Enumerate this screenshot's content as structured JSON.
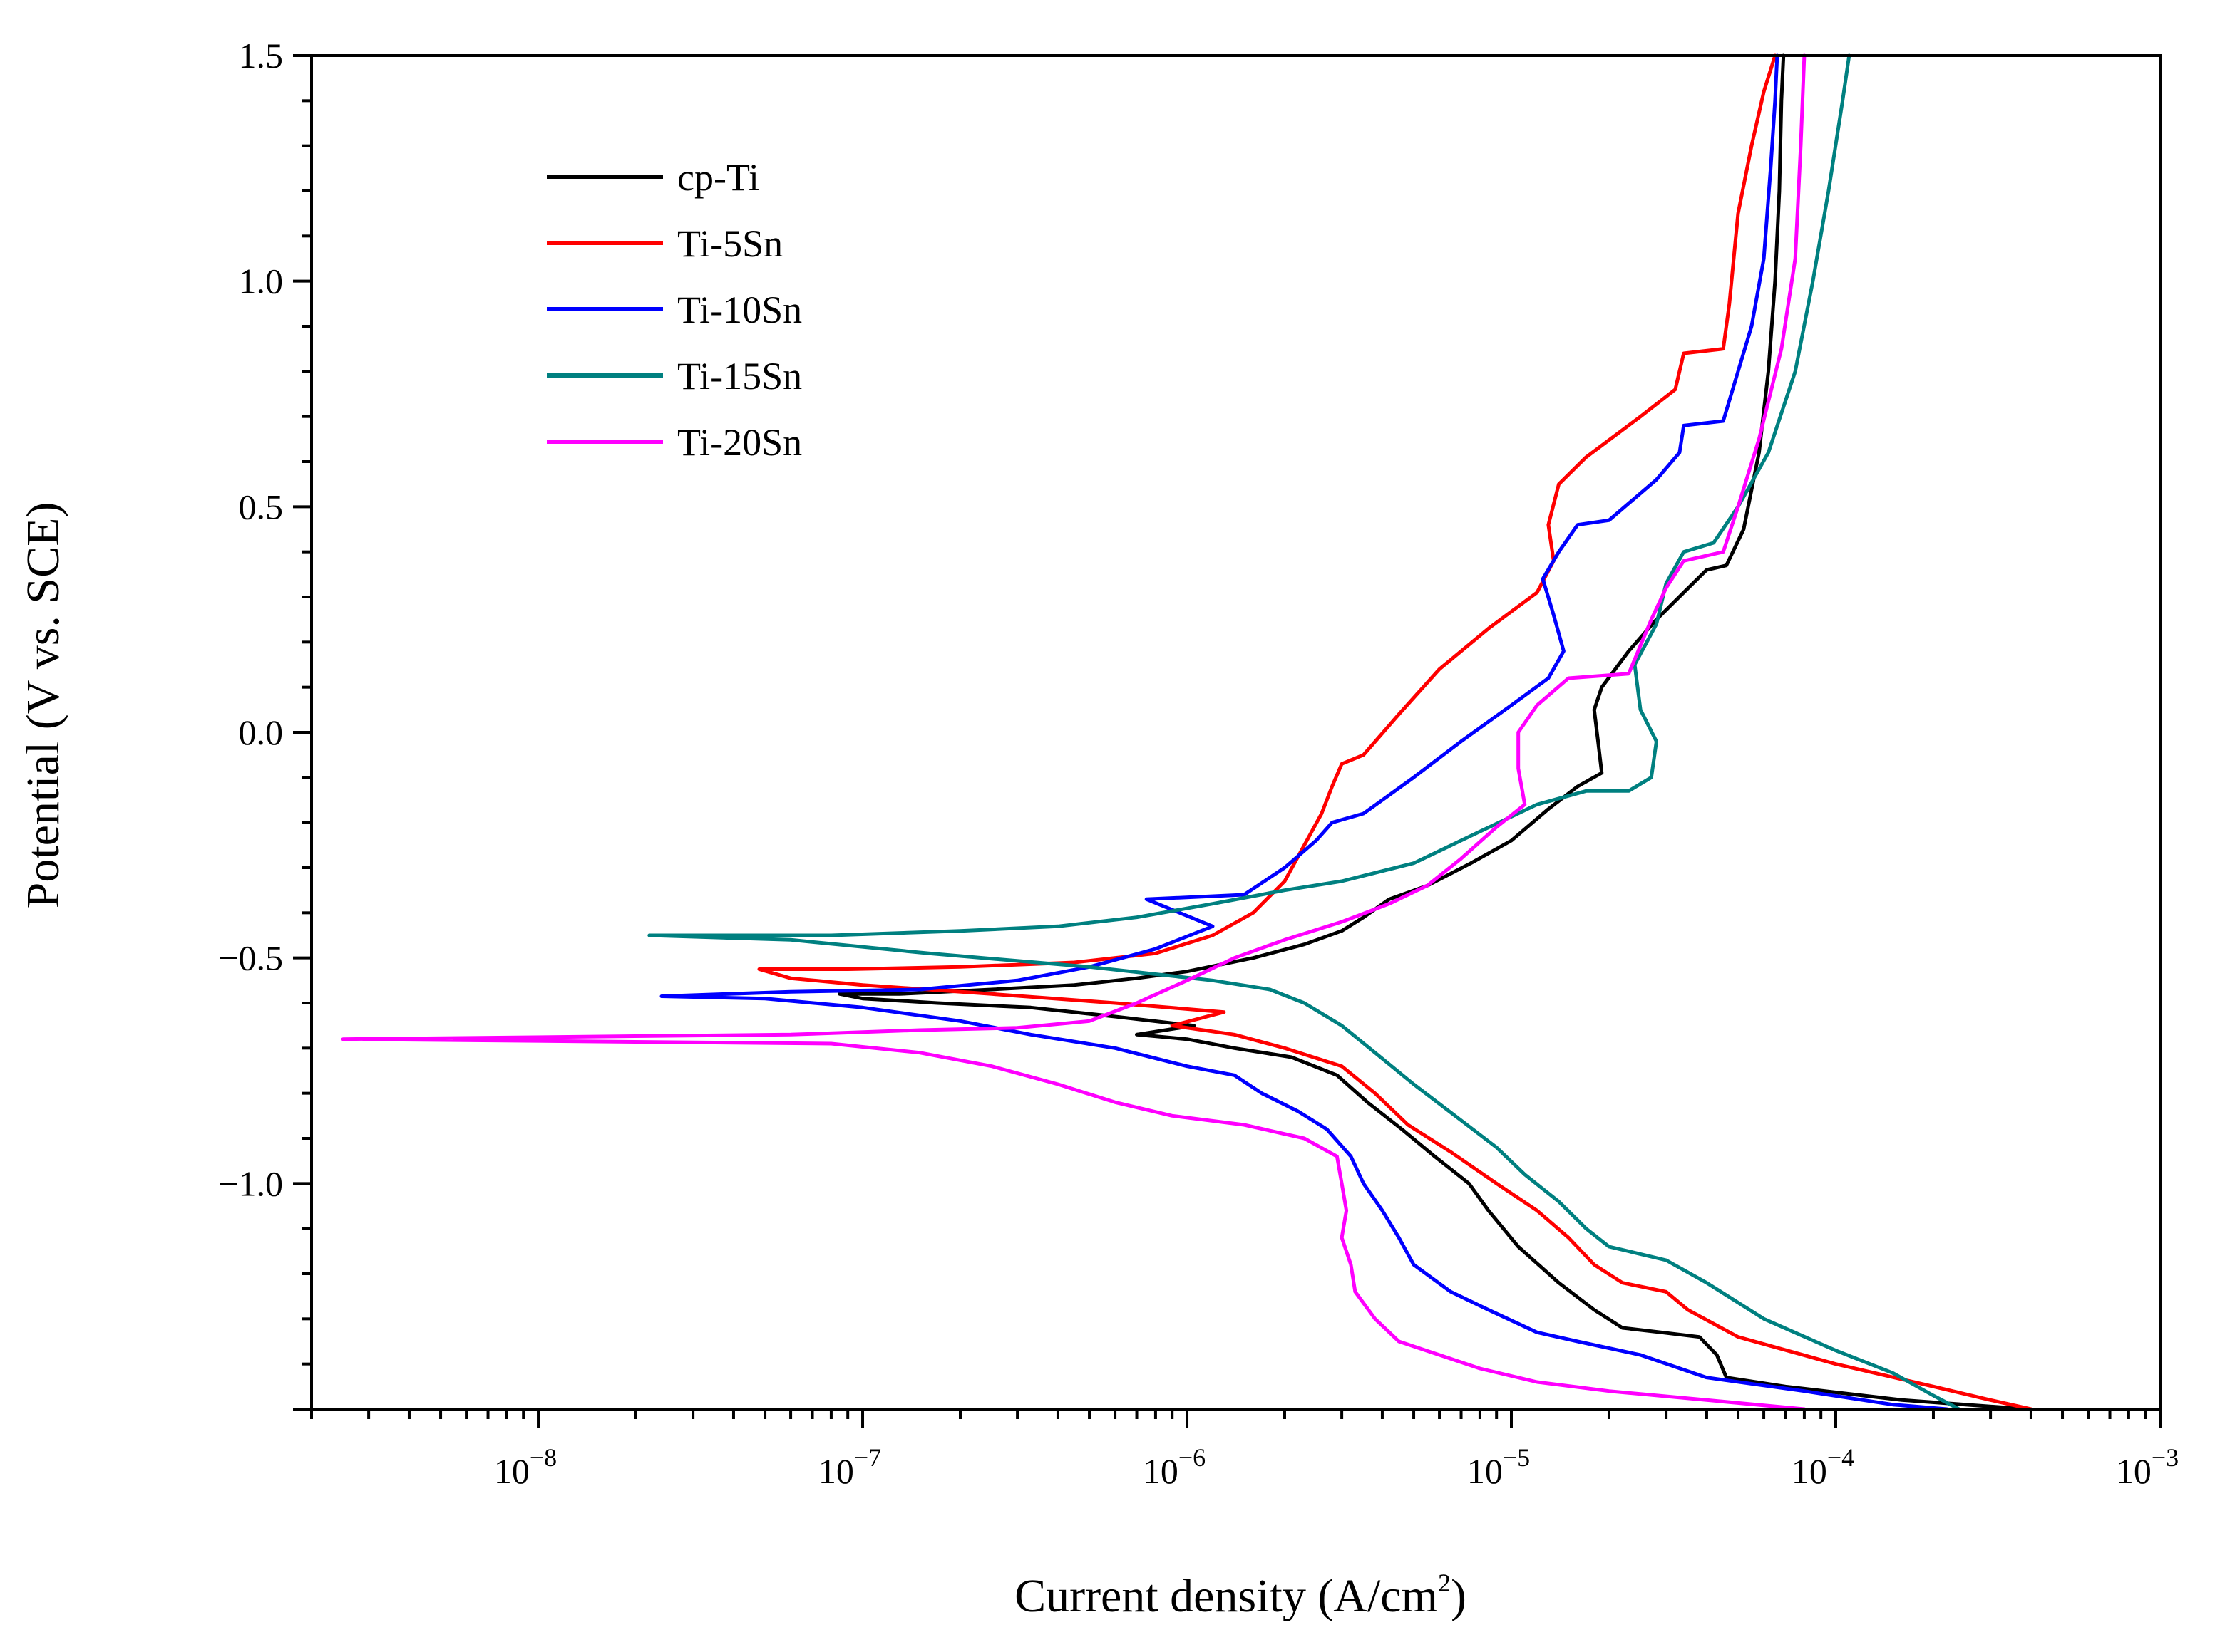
{
  "chart_data": {
    "type": "line",
    "title": "",
    "xlabel": "Current density (A/cm",
    "xlabel_sup": "2",
    "xlabel_end": ")",
    "ylabel": "Potential (V vs. SCE)",
    "xscale": "log",
    "xlim": [
      2e-09,
      0.001
    ],
    "ylim": [
      -1.5,
      1.5
    ],
    "x_tick_labels": [
      {
        "value": 1e-08,
        "base": "10",
        "exp": "−8"
      },
      {
        "value": 1e-07,
        "base": "10",
        "exp": "−7"
      },
      {
        "value": 1e-06,
        "base": "10",
        "exp": "−6"
      },
      {
        "value": 1e-05,
        "base": "10",
        "exp": "−5"
      },
      {
        "value": 0.0001,
        "base": "10",
        "exp": "−4"
      },
      {
        "value": 0.001,
        "base": "10",
        "exp": "−3"
      }
    ],
    "y_tick_labels": [
      {
        "value": 1.5,
        "label": "1.5"
      },
      {
        "value": 1.0,
        "label": "1.0"
      },
      {
        "value": 0.5,
        "label": "0.5"
      },
      {
        "value": 0.0,
        "label": "0.0"
      },
      {
        "value": -0.5,
        "label": "−0.5"
      },
      {
        "value": -1.0,
        "label": "−1.0"
      }
    ],
    "legend_position": "top-left",
    "series": [
      {
        "name": "cp-Ti",
        "color": "#000000",
        "points": [
          [
            0.00039,
            -1.5
          ],
          [
            0.00016,
            -1.48
          ],
          [
            7e-05,
            -1.45
          ],
          [
            4.6e-05,
            -1.43
          ],
          [
            4.3e-05,
            -1.38
          ],
          [
            3.8e-05,
            -1.34
          ],
          [
            2.9e-05,
            -1.33
          ],
          [
            2.2e-05,
            -1.32
          ],
          [
            1.8e-05,
            -1.28
          ],
          [
            1.4e-05,
            -1.22
          ],
          [
            1.05e-05,
            -1.14
          ],
          [
            8.5e-06,
            -1.06
          ],
          [
            7.4e-06,
            -1.0
          ],
          [
            5.8e-06,
            -0.94
          ],
          [
            4.6e-06,
            -0.88
          ],
          [
            3.6e-06,
            -0.82
          ],
          [
            2.9e-06,
            -0.76
          ],
          [
            2.1e-06,
            -0.72
          ],
          [
            1.4e-06,
            -0.7
          ],
          [
            1e-06,
            -0.68
          ],
          [
            7e-07,
            -0.67
          ],
          [
            1.05e-06,
            -0.65
          ],
          [
            6e-07,
            -0.63
          ],
          [
            3.3e-07,
            -0.61
          ],
          [
            1.7e-07,
            -0.6
          ],
          [
            1e-07,
            -0.59
          ],
          [
            8.5e-08,
            -0.58
          ],
          [
            1.3e-07,
            -0.58
          ],
          [
            2.5e-07,
            -0.57
          ],
          [
            4.5e-07,
            -0.56
          ],
          [
            7e-07,
            -0.545
          ],
          [
            1e-06,
            -0.53
          ],
          [
            1.6e-06,
            -0.5
          ],
          [
            2.3e-06,
            -0.47
          ],
          [
            3e-06,
            -0.44
          ],
          [
            3.5e-06,
            -0.41
          ],
          [
            4.2e-06,
            -0.37
          ],
          [
            5.5e-06,
            -0.34
          ],
          [
            7.5e-06,
            -0.29
          ],
          [
            1e-05,
            -0.24
          ],
          [
            1.3e-05,
            -0.17
          ],
          [
            1.6e-05,
            -0.12
          ],
          [
            1.9e-05,
            -0.09
          ],
          [
            1.85e-05,
            -0.02
          ],
          [
            1.8e-05,
            0.05
          ],
          [
            1.9e-05,
            0.1
          ],
          [
            2.3e-05,
            0.18
          ],
          [
            2.8e-05,
            0.25
          ],
          [
            3.4e-05,
            0.31
          ],
          [
            4e-05,
            0.36
          ],
          [
            4.6e-05,
            0.37
          ],
          [
            5.2e-05,
            0.45
          ],
          [
            5.8e-05,
            0.62
          ],
          [
            6.2e-05,
            0.8
          ],
          [
            6.5e-05,
            1.0
          ],
          [
            6.7e-05,
            1.2
          ],
          [
            6.8e-05,
            1.4
          ],
          [
            6.9e-05,
            1.5
          ]
        ]
      },
      {
        "name": "Ti-5Sn",
        "color": "#ff0000",
        "points": [
          [
            0.0004,
            -1.5
          ],
          [
            0.0003,
            -1.48
          ],
          [
            0.0002,
            -1.45
          ],
          [
            0.0001,
            -1.4
          ],
          [
            5e-05,
            -1.34
          ],
          [
            3.5e-05,
            -1.28
          ],
          [
            3e-05,
            -1.24
          ],
          [
            2.2e-05,
            -1.22
          ],
          [
            1.8e-05,
            -1.18
          ],
          [
            1.5e-05,
            -1.12
          ],
          [
            1.2e-05,
            -1.06
          ],
          [
            9e-06,
            -1.0
          ],
          [
            6.5e-06,
            -0.93
          ],
          [
            4.8e-06,
            -0.87
          ],
          [
            3.8e-06,
            -0.8
          ],
          [
            3e-06,
            -0.74
          ],
          [
            2e-06,
            -0.7
          ],
          [
            1.4e-06,
            -0.67
          ],
          [
            9e-07,
            -0.65
          ],
          [
            1.3e-06,
            -0.62
          ],
          [
            6e-07,
            -0.6
          ],
          [
            2.5e-07,
            -0.58
          ],
          [
            1e-07,
            -0.56
          ],
          [
            6e-08,
            -0.545
          ],
          [
            4.8e-08,
            -0.525
          ],
          [
            9e-08,
            -0.525
          ],
          [
            2e-07,
            -0.52
          ],
          [
            4.5e-07,
            -0.51
          ],
          [
            8e-07,
            -0.49
          ],
          [
            1.2e-06,
            -0.45
          ],
          [
            1.6e-06,
            -0.4
          ],
          [
            2e-06,
            -0.33
          ],
          [
            2.3e-06,
            -0.25
          ],
          [
            2.6e-06,
            -0.18
          ],
          [
            2.8e-06,
            -0.12
          ],
          [
            3e-06,
            -0.07
          ],
          [
            3.5e-06,
            -0.05
          ],
          [
            4.5e-06,
            0.04
          ],
          [
            6e-06,
            0.14
          ],
          [
            8.5e-06,
            0.23
          ],
          [
            1.2e-05,
            0.31
          ],
          [
            1.35e-05,
            0.38
          ],
          [
            1.3e-05,
            0.46
          ],
          [
            1.4e-05,
            0.55
          ],
          [
            1.7e-05,
            0.61
          ],
          [
            2.5e-05,
            0.7
          ],
          [
            3.2e-05,
            0.76
          ],
          [
            3.4e-05,
            0.84
          ],
          [
            4.5e-05,
            0.85
          ],
          [
            4.7e-05,
            0.95
          ],
          [
            5e-05,
            1.15
          ],
          [
            5.5e-05,
            1.3
          ],
          [
            6e-05,
            1.42
          ],
          [
            6.5e-05,
            1.5
          ]
        ]
      },
      {
        "name": "Ti-10Sn",
        "color": "#0000ff",
        "points": [
          [
            0.00022,
            -1.5
          ],
          [
            0.00015,
            -1.49
          ],
          [
            8e-05,
            -1.46
          ],
          [
            4e-05,
            -1.43
          ],
          [
            2.5e-05,
            -1.38
          ],
          [
            1.6e-05,
            -1.35
          ],
          [
            1.2e-05,
            -1.33
          ],
          [
            8.5e-06,
            -1.28
          ],
          [
            6.5e-06,
            -1.24
          ],
          [
            5e-06,
            -1.18
          ],
          [
            4.5e-06,
            -1.12
          ],
          [
            4e-06,
            -1.06
          ],
          [
            3.5e-06,
            -1.0
          ],
          [
            3.2e-06,
            -0.94
          ],
          [
            2.7e-06,
            -0.88
          ],
          [
            2.2e-06,
            -0.84
          ],
          [
            1.7e-06,
            -0.8
          ],
          [
            1.4e-06,
            -0.76
          ],
          [
            1e-06,
            -0.74
          ],
          [
            6e-07,
            -0.7
          ],
          [
            3.3e-07,
            -0.67
          ],
          [
            2e-07,
            -0.64
          ],
          [
            1e-07,
            -0.61
          ],
          [
            5e-08,
            -0.59
          ],
          [
            2.4e-08,
            -0.585
          ],
          [
            6e-08,
            -0.575
          ],
          [
            1.5e-07,
            -0.57
          ],
          [
            3e-07,
            -0.55
          ],
          [
            5e-07,
            -0.52
          ],
          [
            8e-07,
            -0.48
          ],
          [
            1.2e-06,
            -0.43
          ],
          [
            7.5e-07,
            -0.37
          ],
          [
            1.5e-06,
            -0.36
          ],
          [
            2e-06,
            -0.3
          ],
          [
            2.5e-06,
            -0.24
          ],
          [
            2.8e-06,
            -0.2
          ],
          [
            3.5e-06,
            -0.18
          ],
          [
            5e-06,
            -0.1
          ],
          [
            7e-06,
            -0.02
          ],
          [
            1e-05,
            0.06
          ],
          [
            1.3e-05,
            0.12
          ],
          [
            1.45e-05,
            0.18
          ],
          [
            1.35e-05,
            0.26
          ],
          [
            1.25e-05,
            0.34
          ],
          [
            1.4e-05,
            0.4
          ],
          [
            1.6e-05,
            0.46
          ],
          [
            2e-05,
            0.47
          ],
          [
            2.8e-05,
            0.56
          ],
          [
            3.3e-05,
            0.62
          ],
          [
            3.4e-05,
            0.68
          ],
          [
            4.5e-05,
            0.69
          ],
          [
            5e-05,
            0.8
          ],
          [
            5.5e-05,
            0.9
          ],
          [
            6e-05,
            1.05
          ],
          [
            6.3e-05,
            1.25
          ],
          [
            6.5e-05,
            1.4
          ],
          [
            6.6e-05,
            1.5
          ]
        ]
      },
      {
        "name": "Ti-15Sn",
        "color": "#008080",
        "points": [
          [
            0.00024,
            -1.5
          ],
          [
            0.0002,
            -1.47
          ],
          [
            0.00015,
            -1.42
          ],
          [
            0.0001,
            -1.37
          ],
          [
            6e-05,
            -1.3
          ],
          [
            4e-05,
            -1.22
          ],
          [
            3e-05,
            -1.17
          ],
          [
            2e-05,
            -1.14
          ],
          [
            1.7e-05,
            -1.1
          ],
          [
            1.4e-05,
            -1.04
          ],
          [
            1.1e-05,
            -0.98
          ],
          [
            9e-06,
            -0.92
          ],
          [
            7e-06,
            -0.86
          ],
          [
            5e-06,
            -0.78
          ],
          [
            3.8e-06,
            -0.71
          ],
          [
            3e-06,
            -0.65
          ],
          [
            2.3e-06,
            -0.6
          ],
          [
            1.8e-06,
            -0.57
          ],
          [
            1.2e-06,
            -0.55
          ],
          [
            5e-07,
            -0.52
          ],
          [
            1.6e-07,
            -0.49
          ],
          [
            6e-08,
            -0.46
          ],
          [
            2.2e-08,
            -0.45
          ],
          [
            8e-08,
            -0.45
          ],
          [
            2e-07,
            -0.44
          ],
          [
            4e-07,
            -0.43
          ],
          [
            7e-07,
            -0.41
          ],
          [
            1.2e-06,
            -0.38
          ],
          [
            2e-06,
            -0.35
          ],
          [
            3e-06,
            -0.33
          ],
          [
            5e-06,
            -0.29
          ],
          [
            8e-06,
            -0.22
          ],
          [
            1.2e-05,
            -0.16
          ],
          [
            1.7e-05,
            -0.13
          ],
          [
            2.3e-05,
            -0.13
          ],
          [
            2.7e-05,
            -0.1
          ],
          [
            2.8e-05,
            -0.02
          ],
          [
            2.5e-05,
            0.05
          ],
          [
            2.4e-05,
            0.15
          ],
          [
            2.8e-05,
            0.24
          ],
          [
            3e-05,
            0.33
          ],
          [
            3.4e-05,
            0.4
          ],
          [
            4.2e-05,
            0.42
          ],
          [
            5e-05,
            0.5
          ],
          [
            6.2e-05,
            0.62
          ],
          [
            7.5e-05,
            0.8
          ],
          [
            8.5e-05,
            1.0
          ],
          [
            9.5e-05,
            1.2
          ],
          [
            0.000105,
            1.4
          ],
          [
            0.00011,
            1.5
          ]
        ]
      },
      {
        "name": "Ti-20Sn",
        "color": "#ff00ff",
        "points": [
          [
            8e-05,
            -1.5
          ],
          [
            4e-05,
            -1.48
          ],
          [
            2e-05,
            -1.46
          ],
          [
            1.2e-05,
            -1.44
          ],
          [
            8e-06,
            -1.41
          ],
          [
            6e-06,
            -1.38
          ],
          [
            4.5e-06,
            -1.35
          ],
          [
            3.8e-06,
            -1.3
          ],
          [
            3.3e-06,
            -1.24
          ],
          [
            3.2e-06,
            -1.18
          ],
          [
            3e-06,
            -1.12
          ],
          [
            3.1e-06,
            -1.06
          ],
          [
            3e-06,
            -1.0
          ],
          [
            2.9e-06,
            -0.94
          ],
          [
            2.3e-06,
            -0.9
          ],
          [
            1.5e-06,
            -0.87
          ],
          [
            9e-07,
            -0.85
          ],
          [
            6e-07,
            -0.82
          ],
          [
            4e-07,
            -0.78
          ],
          [
            2.5e-07,
            -0.74
          ],
          [
            1.5e-07,
            -0.71
          ],
          [
            8e-08,
            -0.69
          ],
          [
            2.5e-09,
            -0.68
          ],
          [
            6e-08,
            -0.67
          ],
          [
            1.5e-07,
            -0.66
          ],
          [
            3e-07,
            -0.655
          ],
          [
            5e-07,
            -0.64
          ],
          [
            7e-07,
            -0.6
          ],
          [
            1e-06,
            -0.55
          ],
          [
            1.4e-06,
            -0.5
          ],
          [
            2e-06,
            -0.46
          ],
          [
            3e-06,
            -0.42
          ],
          [
            4.2e-06,
            -0.38
          ],
          [
            5.5e-06,
            -0.34
          ],
          [
            7e-06,
            -0.28
          ],
          [
            9e-06,
            -0.21
          ],
          [
            1.1e-05,
            -0.16
          ],
          [
            1.05e-05,
            -0.08
          ],
          [
            1.05e-05,
            0.0
          ],
          [
            1.2e-05,
            0.06
          ],
          [
            1.5e-05,
            0.12
          ],
          [
            2.3e-05,
            0.13
          ],
          [
            2.7e-05,
            0.25
          ],
          [
            3e-05,
            0.32
          ],
          [
            3.4e-05,
            0.38
          ],
          [
            4.5e-05,
            0.4
          ],
          [
            5e-05,
            0.5
          ],
          [
            5.8e-05,
            0.65
          ],
          [
            6.8e-05,
            0.85
          ],
          [
            7.5e-05,
            1.05
          ],
          [
            7.8e-05,
            1.3
          ],
          [
            8e-05,
            1.5
          ]
        ]
      }
    ]
  }
}
